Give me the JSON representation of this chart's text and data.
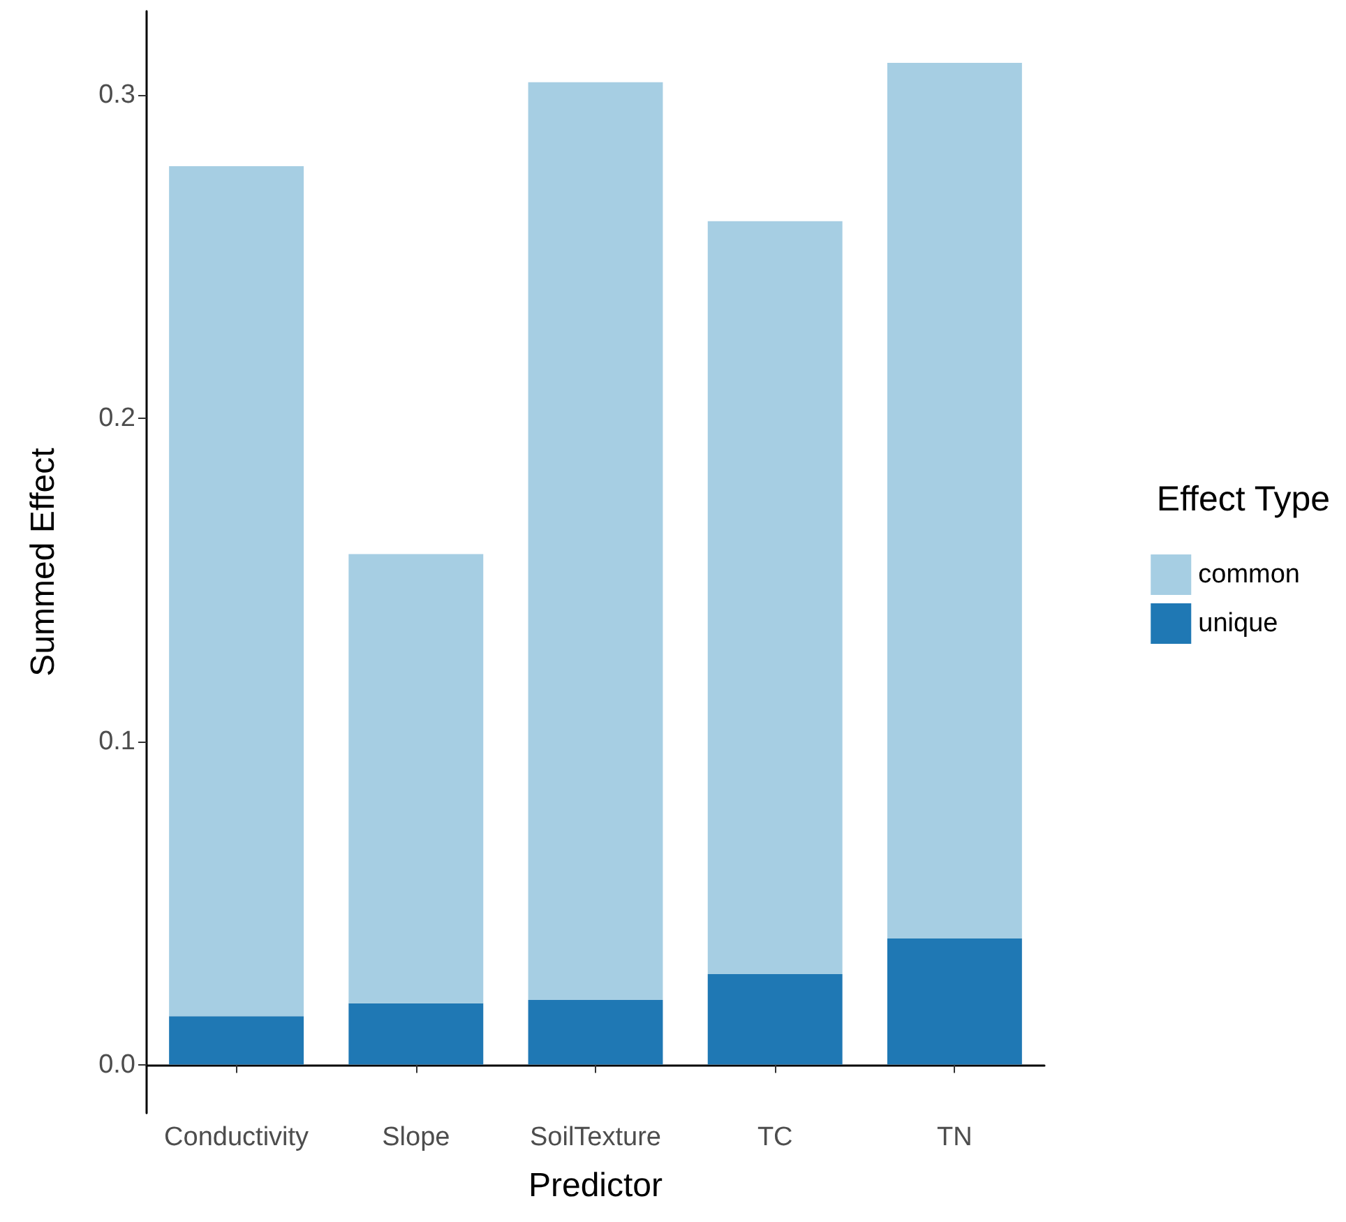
{
  "chart_data": {
    "type": "bar",
    "xlabel": "Predictor",
    "ylabel": "Summed Effect",
    "legend_title": "Effect Type",
    "categories": [
      "Conductivity",
      "Slope",
      "SoilTexture",
      "TC",
      "TN"
    ],
    "stacked": true,
    "series": [
      {
        "name": "unique",
        "color": "#1f78b4",
        "values": [
          0.015,
          0.019,
          0.02,
          0.028,
          0.039
        ]
      },
      {
        "name": "common",
        "color": "#a6cee3",
        "values": [
          0.263,
          0.139,
          0.284,
          0.233,
          0.271
        ]
      }
    ],
    "ylim": [
      -0.015,
      0.326
    ],
    "yticks": [
      {
        "value": 0,
        "label": "0.0"
      },
      {
        "value": 0.1,
        "label": "0.1"
      },
      {
        "value": 0.2,
        "label": "0.2"
      },
      {
        "value": 0.3,
        "label": "0.3"
      }
    ],
    "grid": false,
    "legend": "right"
  }
}
